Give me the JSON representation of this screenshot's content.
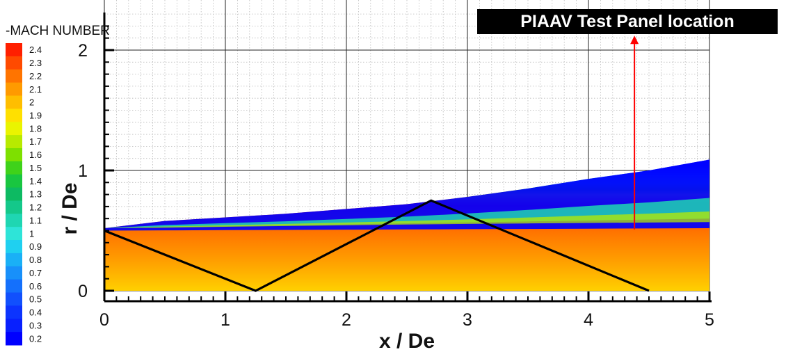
{
  "chart_data": {
    "type": "heatmap",
    "title": "",
    "xlabel": "x / De",
    "ylabel": "r / De",
    "xlim": [
      0,
      5
    ],
    "ylim": [
      0,
      2
    ],
    "x_ticks": [
      "0",
      "1",
      "2",
      "3",
      "4",
      "5"
    ],
    "y_ticks": [
      "0",
      "1",
      "2"
    ],
    "grid": true,
    "colorbar": {
      "title": "-MACH NUMBER",
      "placement": "left",
      "levels": [
        "2.4",
        "2.3",
        "2.2",
        "2.1",
        "2",
        "1.9",
        "1.8",
        "1.7",
        "1.6",
        "1.5",
        "1.4",
        "1.3",
        "1.2",
        "1.1",
        "1",
        "0.9",
        "0.8",
        "0.7",
        "0.6",
        "0.5",
        "0.4",
        "0.3",
        "0.2"
      ],
      "colors": [
        "#ff1f00",
        "#ff4a00",
        "#ff7400",
        "#ff9a00",
        "#ffbe00",
        "#ffe000",
        "#eaf400",
        "#b8ea00",
        "#7ee000",
        "#3fd21a",
        "#19c640",
        "#0dba62",
        "#14c88a",
        "#1fd6b2",
        "#2ee4d8",
        "#1fd0f0",
        "#1ab0f6",
        "#1890fa",
        "#1470fc",
        "#1150fd",
        "#0c34fe",
        "#0820fe",
        "#0000ff"
      ]
    },
    "series": [
      {
        "name": "",
        "type": "shock_line",
        "x": [
          0,
          1.25,
          2.7,
          4.5
        ],
        "y": [
          0.5,
          0,
          0.75,
          0
        ]
      },
      {
        "name": "",
        "type": "jet_boundary",
        "x": [
          0,
          0.5,
          1,
          1.5,
          2,
          2.5,
          3,
          3.5,
          4,
          4.5,
          5
        ],
        "y": [
          0.52,
          0.58,
          0.61,
          0.64,
          0.68,
          0.72,
          0.78,
          0.85,
          0.93,
          1.0,
          1.09
        ]
      }
    ],
    "annotation": {
      "text": "PIAAV Test Panel location",
      "arrow_x": 4.38,
      "arrow_from_y": 0.51,
      "arrow_to_y": 2.12,
      "arrow_color": "#ff0000"
    }
  }
}
